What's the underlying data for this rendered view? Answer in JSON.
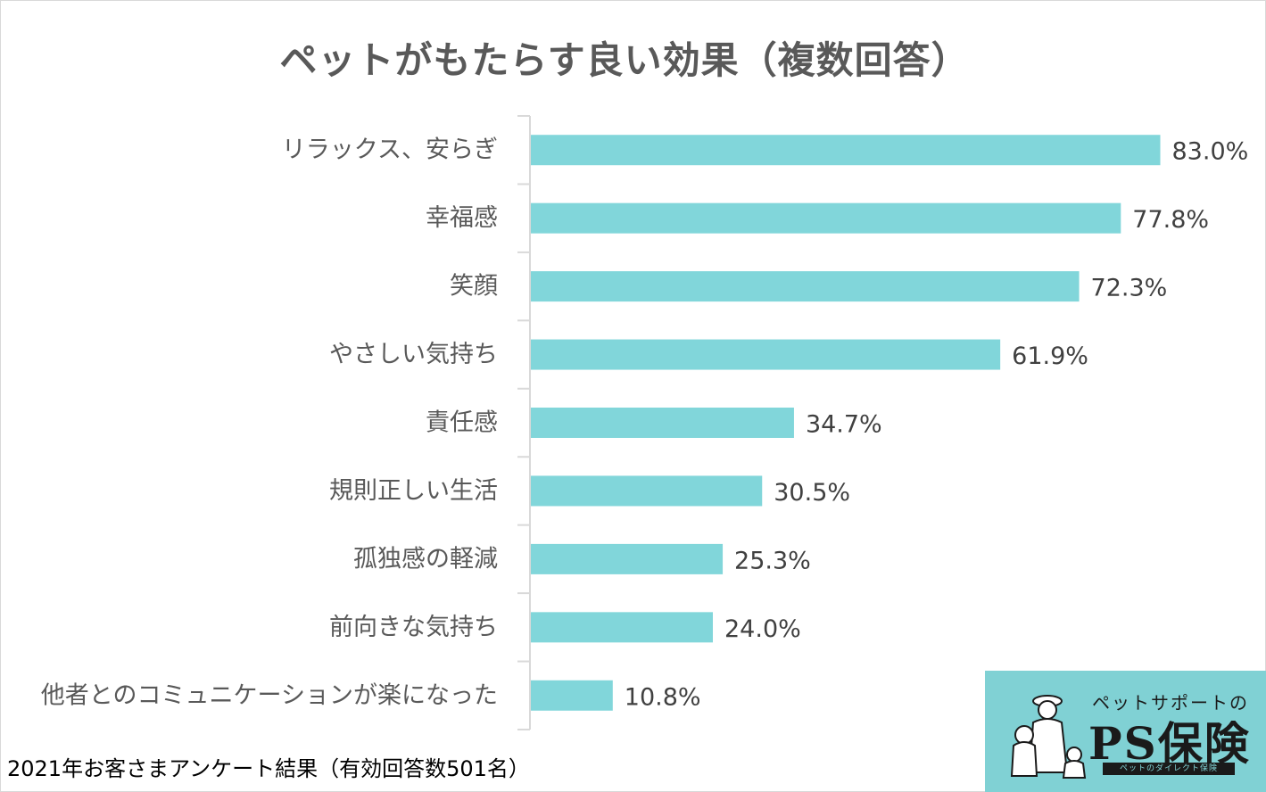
{
  "title": "ペットがもたらす良い効果（複数回答）",
  "footnote": "2021年お客さまアンケート結果（有効回答数501名）",
  "logo": {
    "subtitle": "ペットサポートの",
    "name": "PS保険",
    "tagline": "ペットのダイレクト保険"
  },
  "colors": {
    "bar": "#81d6da",
    "axis": "#d9d9d9",
    "logo_bg": "#80d1d4"
  },
  "chart_data": {
    "type": "bar",
    "orientation": "horizontal",
    "title": "ペットがもたらす良い効果（複数回答）",
    "categories": [
      "リラックス、安らぎ",
      "幸福感",
      "笑顔",
      "やさしい気持ち",
      "責任感",
      "規則正しい生活",
      "孤独感の軽減",
      "前向きな気持ち",
      "他者とのコミュニケーションが楽になった"
    ],
    "values": [
      83.0,
      77.8,
      72.3,
      61.9,
      34.7,
      30.5,
      25.3,
      24.0,
      10.8
    ],
    "value_labels": [
      "83.0%",
      "77.8%",
      "72.3%",
      "61.9%",
      "34.7%",
      "30.5%",
      "25.3%",
      "24.0%",
      "10.8%"
    ],
    "unit": "%",
    "xlim": [
      0,
      100
    ],
    "grid": false,
    "legend": "none"
  }
}
